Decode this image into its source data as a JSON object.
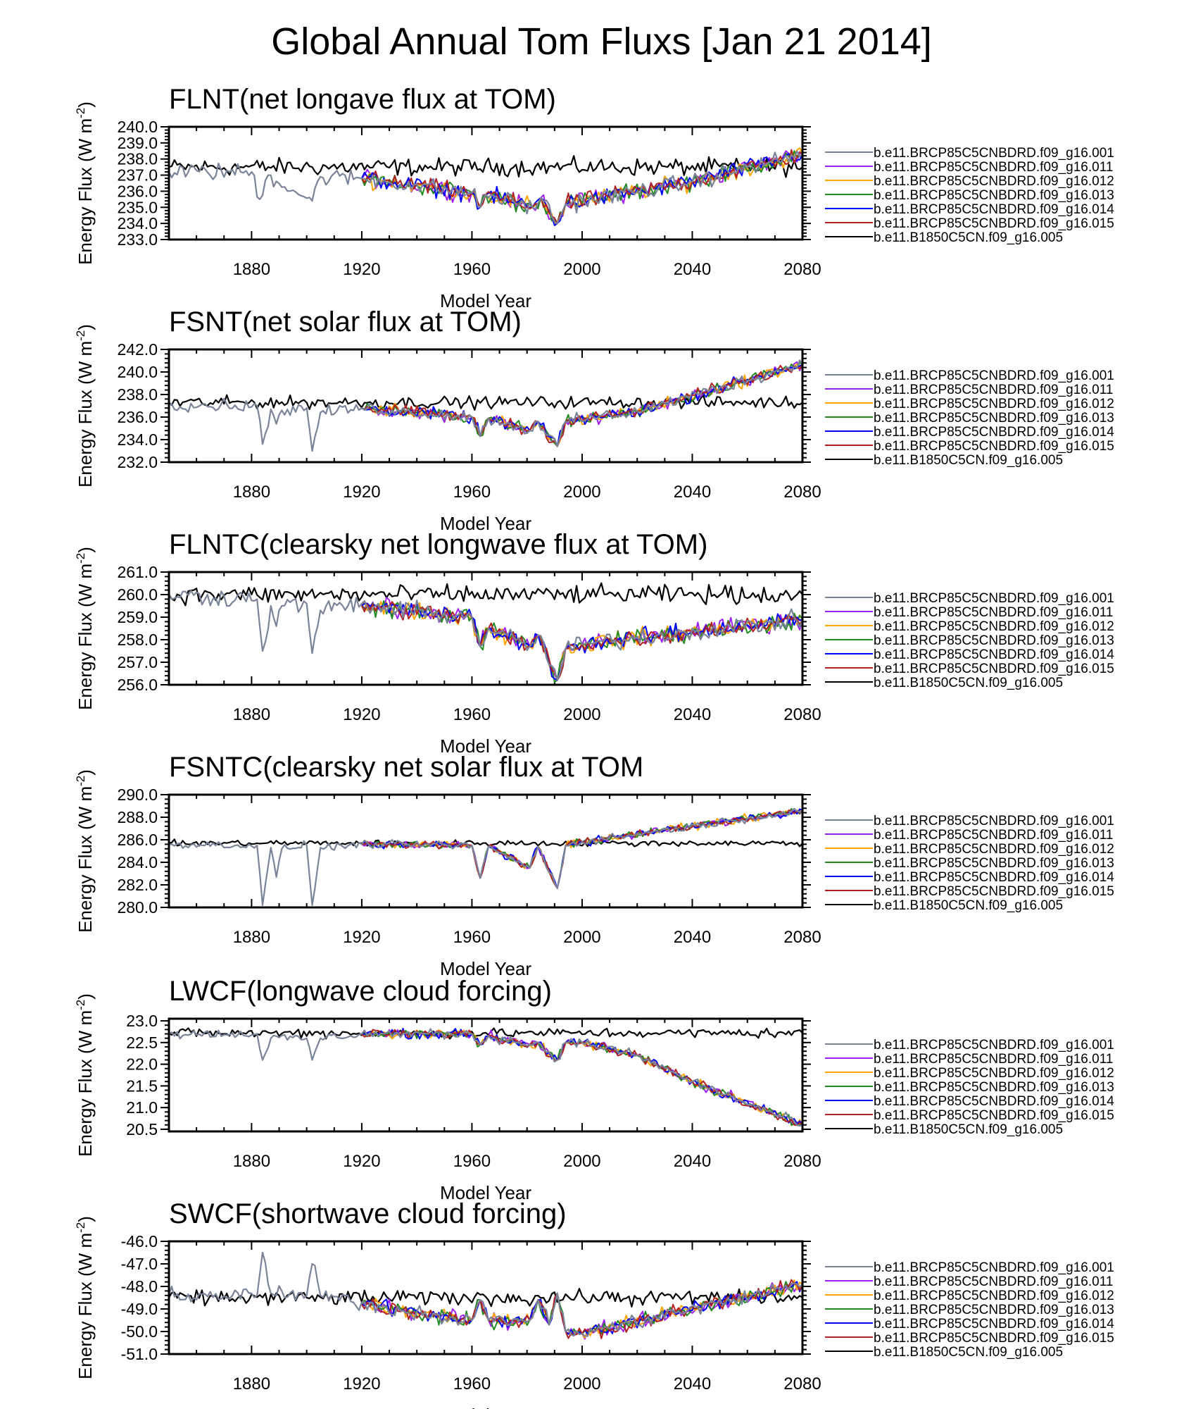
{
  "figure_title": "Global Annual Tom Fluxs [Jan 21 2014]",
  "chart_data": [
    {
      "type": "line",
      "title": "FLNT(net longave flux at TOM)",
      "xlabel": "Model Year",
      "ylabel": "Energy Flux (W m^-2)",
      "xlim": [
        1850,
        2080
      ],
      "ylim": [
        233.0,
        240.0
      ],
      "xticks": [
        1880,
        1920,
        1960,
        2000,
        2040,
        2080
      ],
      "xtick_labels": [
        "1880",
        "1920",
        "1960",
        "2000",
        "2040",
        "2080"
      ],
      "yticks": [
        233.0,
        234.0,
        235.0,
        236.0,
        237.0,
        238.0,
        239.0,
        240.0
      ],
      "ytick_labels": [
        "233.0",
        "234.0",
        "235.0",
        "236.0",
        "237.0",
        "238.0",
        "239.0",
        "240.0"
      ],
      "legend": [
        "b.e11.BRCP85C5CNBDRD.f09_g16.001",
        "b.e11.BRCP85C5CNBDRD.f09_g16.011",
        "b.e11.BRCP85C5CNBDRD.f09_g16.012",
        "b.e11.BRCP85C5CNBDRD.f09_g16.013",
        "b.e11.BRCP85C5CNBDRD.f09_g16.014",
        "b.e11.BRCP85C5CNBDRD.f09_g16.015",
        "b.e11.B1850C5CN.f09_g16.005"
      ],
      "colors": [
        "#7a8499",
        "#a020f0",
        "#ffa500",
        "#228b22",
        "#0000ff",
        "#b22222",
        "#000000"
      ],
      "control": {
        "years": [
          1850,
          2080
        ],
        "values": [
          237.5,
          237.5
        ],
        "noise": 0.4
      },
      "hist": {
        "years": [
          1850,
          1880,
          1883,
          1886,
          1902,
          1905,
          1920
        ],
        "values": [
          237.2,
          237.2,
          235.5,
          237.0,
          235.4,
          236.9,
          236.8
        ],
        "noise": 0.4
      },
      "members": {
        "years": [
          1920,
          1960,
          1963,
          1965,
          1982,
          1985,
          1991,
          1994,
          2040,
          2080
        ],
        "values": [
          236.8,
          235.9,
          235.0,
          235.8,
          235.0,
          235.6,
          234.0,
          235.2,
          236.6,
          238.3
        ],
        "noise": 0.4
      }
    },
    {
      "type": "line",
      "title": "FSNT(net solar flux at TOM)",
      "xlabel": "Model Year",
      "ylabel": "Energy Flux (W m^-2)",
      "xlim": [
        1850,
        2080
      ],
      "ylim": [
        232.0,
        242.0
      ],
      "xticks": [
        1880,
        1920,
        1960,
        2000,
        2040,
        2080
      ],
      "xtick_labels": [
        "1880",
        "1920",
        "1960",
        "2000",
        "2040",
        "2080"
      ],
      "yticks": [
        232.0,
        234.0,
        236.0,
        238.0,
        240.0,
        242.0
      ],
      "ytick_labels": [
        "232.0",
        "234.0",
        "236.0",
        "238.0",
        "240.0",
        "242.0"
      ],
      "legend": [
        "b.e11.BRCP85C5CNBDRD.f09_g16.001",
        "b.e11.BRCP85C5CNBDRD.f09_g16.011",
        "b.e11.BRCP85C5CNBDRD.f09_g16.012",
        "b.e11.BRCP85C5CNBDRD.f09_g16.013",
        "b.e11.BRCP85C5CNBDRD.f09_g16.014",
        "b.e11.BRCP85C5CNBDRD.f09_g16.015",
        "b.e11.B1850C5CN.f09_g16.005"
      ],
      "colors": [
        "#7a8499",
        "#a020f0",
        "#ffa500",
        "#228b22",
        "#0000ff",
        "#b22222",
        "#000000"
      ],
      "control": {
        "years": [
          1850,
          2080
        ],
        "values": [
          237.3,
          237.3
        ],
        "noise": 0.4
      },
      "hist": {
        "years": [
          1850,
          1882,
          1884,
          1887,
          1889,
          1891,
          1900,
          1902,
          1905,
          1920
        ],
        "values": [
          237.1,
          237.0,
          233.6,
          236.7,
          235.4,
          236.6,
          236.8,
          233.0,
          236.4,
          236.8
        ],
        "noise": 0.4
      },
      "members": {
        "years": [
          1920,
          1960,
          1963,
          1966,
          1981,
          1984,
          1991,
          1994,
          2020,
          2080
        ],
        "values": [
          236.8,
          236.0,
          234.3,
          235.9,
          234.8,
          235.6,
          233.4,
          235.6,
          236.5,
          240.7
        ],
        "noise": 0.4
      }
    },
    {
      "type": "line",
      "title": "FLNTC(clearsky net longwave flux at TOM)",
      "xlabel": "Model Year",
      "ylabel": "Energy Flux (W m^-2)",
      "xlim": [
        1850,
        2080
      ],
      "ylim": [
        256.0,
        261.0
      ],
      "xticks": [
        1880,
        1920,
        1960,
        2000,
        2040,
        2080
      ],
      "xtick_labels": [
        "1880",
        "1920",
        "1960",
        "2000",
        "2040",
        "2080"
      ],
      "yticks": [
        256.0,
        257.0,
        258.0,
        259.0,
        260.0,
        261.0
      ],
      "ytick_labels": [
        "256.0",
        "257.0",
        "258.0",
        "259.0",
        "260.0",
        "261.0"
      ],
      "legend": [
        "b.e11.BRCP85C5CNBDRD.f09_g16.001",
        "b.e11.BRCP85C5CNBDRD.f09_g16.011",
        "b.e11.BRCP85C5CNBDRD.f09_g16.012",
        "b.e11.BRCP85C5CNBDRD.f09_g16.013",
        "b.e11.BRCP85C5CNBDRD.f09_g16.014",
        "b.e11.BRCP85C5CNBDRD.f09_g16.015",
        "b.e11.B1850C5CN.f09_g16.005"
      ],
      "colors": [
        "#7a8499",
        "#a020f0",
        "#ffa500",
        "#228b22",
        "#0000ff",
        "#b22222",
        "#000000"
      ],
      "control": {
        "years": [
          1850,
          2080
        ],
        "values": [
          260.0,
          260.0
        ],
        "noise": 0.3
      },
      "hist": {
        "years": [
          1850,
          1882,
          1884,
          1887,
          1889,
          1891,
          1900,
          1902,
          1905,
          1920
        ],
        "values": [
          260.0,
          259.8,
          257.5,
          259.5,
          258.6,
          259.5,
          259.6,
          257.4,
          259.3,
          259.6
        ],
        "noise": 0.3
      },
      "members": {
        "years": [
          1920,
          1960,
          1963,
          1966,
          1981,
          1984,
          1991,
          1994,
          2000,
          2080
        ],
        "values": [
          259.5,
          259.0,
          257.7,
          258.5,
          257.7,
          258.2,
          256.2,
          257.6,
          257.8,
          258.9
        ],
        "noise": 0.3
      }
    },
    {
      "type": "line",
      "title": "FSNTC(clearsky net solar flux at TOM",
      "xlabel": "Model Year",
      "ylabel": "Energy Flux (W m^-2)",
      "xlim": [
        1850,
        2080
      ],
      "ylim": [
        280.0,
        290.0
      ],
      "xticks": [
        1880,
        1920,
        1960,
        2000,
        2040,
        2080
      ],
      "xtick_labels": [
        "1880",
        "1920",
        "1960",
        "2000",
        "2040",
        "2080"
      ],
      "yticks": [
        280.0,
        282.0,
        284.0,
        286.0,
        288.0,
        290.0
      ],
      "ytick_labels": [
        "280.0",
        "282.0",
        "284.0",
        "286.0",
        "288.0",
        "290.0"
      ],
      "legend": [
        "b.e11.BRCP85C5CNBDRD.f09_g16.001",
        "b.e11.BRCP85C5CNBDRD.f09_g16.011",
        "b.e11.BRCP85C5CNBDRD.f09_g16.012",
        "b.e11.BRCP85C5CNBDRD.f09_g16.013",
        "b.e11.BRCP85C5CNBDRD.f09_g16.014",
        "b.e11.BRCP85C5CNBDRD.f09_g16.015",
        "b.e11.B1850C5CN.f09_g16.005"
      ],
      "colors": [
        "#7a8499",
        "#a020f0",
        "#ffa500",
        "#228b22",
        "#0000ff",
        "#b22222",
        "#000000"
      ],
      "control": {
        "years": [
          1850,
          2080
        ],
        "values": [
          285.7,
          285.7
        ],
        "noise": 0.2
      },
      "hist": {
        "years": [
          1850,
          1882,
          1884,
          1887,
          1889,
          1891,
          1900,
          1902,
          1905,
          1920
        ],
        "values": [
          285.6,
          285.5,
          280.2,
          285.3,
          282.7,
          285.2,
          285.5,
          280.2,
          285.3,
          285.6
        ],
        "noise": 0.25
      },
      "members": {
        "years": [
          1920,
          1960,
          1963,
          1966,
          1981,
          1984,
          1991,
          1994,
          2000,
          2080
        ],
        "values": [
          285.6,
          285.5,
          282.6,
          285.4,
          283.5,
          285.4,
          281.7,
          285.5,
          285.8,
          288.6
        ],
        "noise": 0.25
      }
    },
    {
      "type": "line",
      "title": "LWCF(longwave cloud forcing)",
      "xlabel": "Model Year",
      "ylabel": "Energy Flux (W m^-2)",
      "xlim": [
        1850,
        2080
      ],
      "ylim": [
        20.45,
        23.05
      ],
      "xticks": [
        1880,
        1920,
        1960,
        2000,
        2040,
        2080
      ],
      "xtick_labels": [
        "1880",
        "1920",
        "1960",
        "2000",
        "2040",
        "2080"
      ],
      "yticks": [
        20.5,
        21.0,
        21.5,
        22.0,
        22.5,
        23.0
      ],
      "ytick_labels": [
        "20.5",
        "21.0",
        "21.5",
        "22.0",
        "22.5",
        "23.0"
      ],
      "legend": [
        "b.e11.BRCP85C5CNBDRD.f09_g16.001",
        "b.e11.BRCP85C5CNBDRD.f09_g16.011",
        "b.e11.BRCP85C5CNBDRD.f09_g16.012",
        "b.e11.BRCP85C5CNBDRD.f09_g16.013",
        "b.e11.BRCP85C5CNBDRD.f09_g16.014",
        "b.e11.BRCP85C5CNBDRD.f09_g16.015",
        "b.e11.B1850C5CN.f09_g16.005"
      ],
      "colors": [
        "#7a8499",
        "#a020f0",
        "#ffa500",
        "#228b22",
        "#0000ff",
        "#b22222",
        "#000000"
      ],
      "control": {
        "years": [
          1850,
          2080
        ],
        "values": [
          22.72,
          22.72
        ],
        "noise": 0.08
      },
      "hist": {
        "years": [
          1850,
          1882,
          1884,
          1887,
          1900,
          1902,
          1905,
          1920
        ],
        "values": [
          22.7,
          22.7,
          22.1,
          22.6,
          22.6,
          22.1,
          22.6,
          22.7
        ],
        "noise": 0.08
      },
      "members": {
        "years": [
          1920,
          1960,
          1963,
          1966,
          1981,
          1984,
          1991,
          1994,
          2000,
          2020,
          2040,
          2080
        ],
        "values": [
          22.7,
          22.7,
          22.45,
          22.65,
          22.45,
          22.5,
          22.1,
          22.5,
          22.5,
          22.2,
          21.6,
          20.6
        ],
        "noise": 0.08
      }
    },
    {
      "type": "line",
      "title": "SWCF(shortwave cloud forcing)",
      "xlabel": "Model Year",
      "ylabel": "Energy Flux (W m^-2)",
      "xlim": [
        1850,
        2080
      ],
      "ylim": [
        -51.0,
        -46.0
      ],
      "xticks": [
        1880,
        1920,
        1960,
        2000,
        2040,
        2080
      ],
      "xtick_labels": [
        "1880",
        "1920",
        "1960",
        "2000",
        "2040",
        "2080"
      ],
      "yticks": [
        -51.0,
        -50.0,
        -49.0,
        -48.0,
        -47.0,
        -46.0
      ],
      "ytick_labels": [
        "-51.0",
        "-50.0",
        "-49.0",
        "-48.0",
        "-47.0",
        "-46.0"
      ],
      "legend": [
        "b.e11.BRCP85C5CNBDRD.f09_g16.001",
        "b.e11.BRCP85C5CNBDRD.f09_g16.011",
        "b.e11.BRCP85C5CNBDRD.f09_g16.012",
        "b.e11.BRCP85C5CNBDRD.f09_g16.013",
        "b.e11.BRCP85C5CNBDRD.f09_g16.014",
        "b.e11.BRCP85C5CNBDRD.f09_g16.015",
        "b.e11.B1850C5CN.f09_g16.005"
      ],
      "colors": [
        "#7a8499",
        "#a020f0",
        "#ffa500",
        "#228b22",
        "#0000ff",
        "#b22222",
        "#000000"
      ],
      "control": {
        "years": [
          1850,
          2080
        ],
        "values": [
          -48.5,
          -48.5
        ],
        "noise": 0.25
      },
      "hist": {
        "years": [
          1850,
          1882,
          1884,
          1887,
          1900,
          1902,
          1905,
          1920
        ],
        "values": [
          -48.4,
          -48.4,
          -46.5,
          -48.3,
          -48.4,
          -47.0,
          -48.4,
          -48.7
        ],
        "noise": 0.25
      },
      "members": {
        "years": [
          1920,
          1960,
          1963,
          1966,
          1981,
          1984,
          1988,
          1991,
          1994,
          2000,
          2080
        ],
        "values": [
          -48.8,
          -49.5,
          -48.6,
          -49.5,
          -49.5,
          -48.6,
          -49.7,
          -48.3,
          -50.0,
          -50.1,
          -47.9
        ],
        "noise": 0.25
      }
    }
  ]
}
